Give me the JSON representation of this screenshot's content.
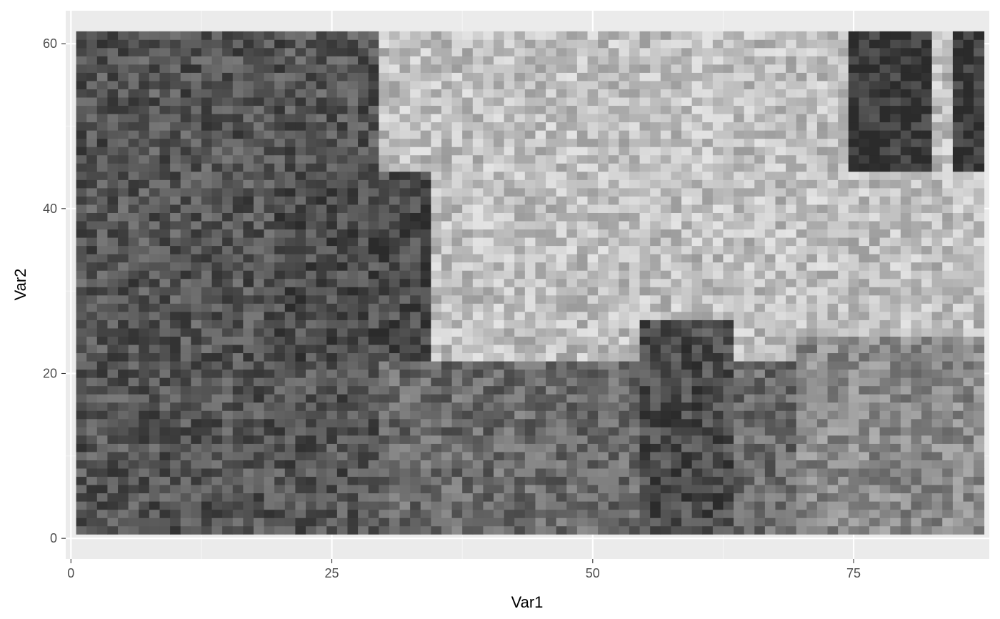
{
  "chart_data": {
    "type": "heatmap",
    "title": "",
    "xlabel": "Var1",
    "ylabel": "Var2",
    "xlim": [
      -0.5,
      88
    ],
    "ylim": [
      -2.5,
      64
    ],
    "x_ticks": [
      0,
      25,
      50,
      75
    ],
    "x_tick_labels": [
      "0",
      "25",
      "50",
      "75"
    ],
    "y_ticks": [
      0,
      20,
      40,
      60
    ],
    "y_tick_labels": [
      "0",
      "20",
      "40",
      "60"
    ],
    "grid": true,
    "legend": "none",
    "colors": {
      "panel_background": "#ebebeb",
      "grid_major": "#ffffff",
      "grid_minor": "#f5f5f5",
      "fill_low": "#2b2b2b",
      "fill_high": "#ffffff"
    },
    "x_range": [
      1,
      87
    ],
    "y_range": [
      1,
      61
    ],
    "regions": [
      {
        "x": [
          1,
          30
        ],
        "y": [
          1,
          61
        ],
        "value": 0.2
      },
      {
        "x": [
          30,
          87
        ],
        "y": [
          1,
          22
        ],
        "value": 0.3
      },
      {
        "x": [
          30,
          87
        ],
        "y": [
          22,
          61
        ],
        "value": 0.7
      },
      {
        "x": [
          20,
          34
        ],
        "y": [
          22,
          44
        ],
        "value": 0.15
      },
      {
        "x": [
          55,
          63
        ],
        "y": [
          1,
          26
        ],
        "value": 0.15
      },
      {
        "x": [
          75,
          82
        ],
        "y": [
          45,
          61
        ],
        "value": 0.05
      },
      {
        "x": [
          85,
          87
        ],
        "y": [
          45,
          61
        ],
        "value": 0.05
      },
      {
        "x": [
          70,
          87
        ],
        "y": [
          1,
          24
        ],
        "value": 0.45
      }
    ]
  }
}
